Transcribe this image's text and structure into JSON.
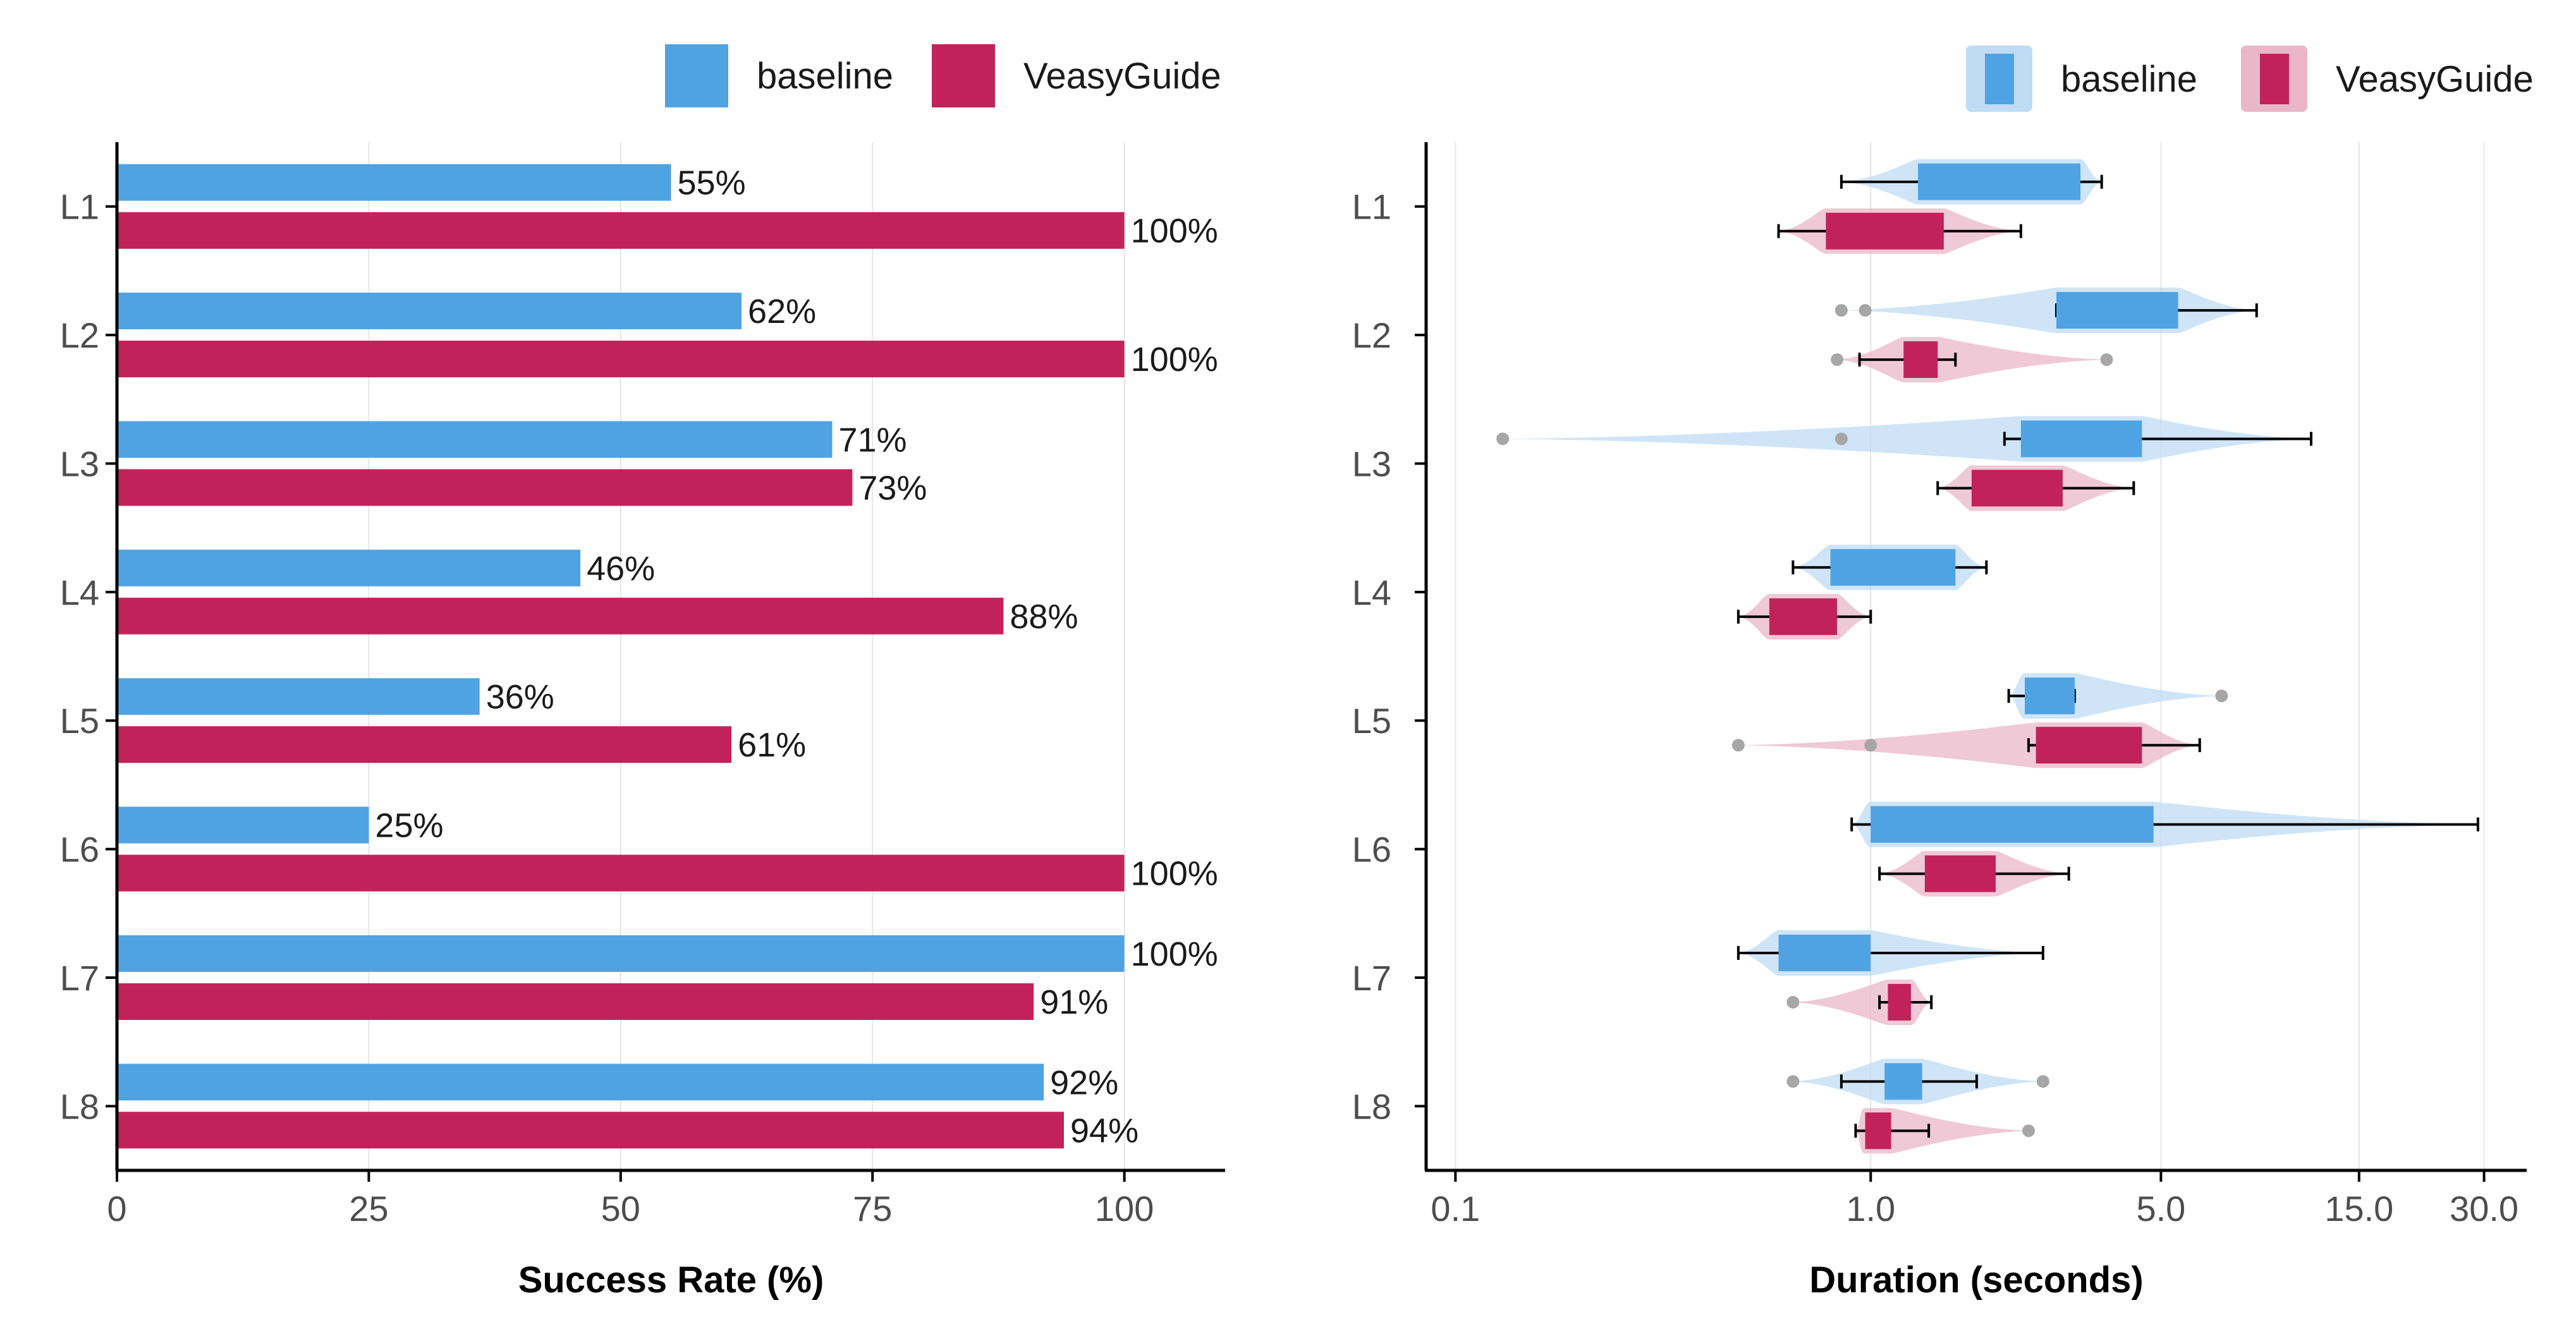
{
  "colors": {
    "baseline": "#4FA3E3",
    "veasyguide": "#C2225A",
    "baseline_fill_light": "#BFDCF4",
    "veasyguide_fill_light": "#E9B7C8",
    "grid": "#E6E6E6",
    "outlier": "#A6A6A6"
  },
  "chart_data": [
    {
      "type": "bar",
      "orientation": "horizontal",
      "xlabel": "Success Rate (%)",
      "xlim": [
        0,
        110
      ],
      "xticks": [
        0,
        25,
        50,
        75,
        100
      ],
      "categories": [
        "L1",
        "L2",
        "L3",
        "L4",
        "L5",
        "L6",
        "L7",
        "L8"
      ],
      "legend": [
        "baseline",
        "VeasyGuide"
      ],
      "legend_position": "top",
      "series": [
        {
          "name": "baseline",
          "values": [
            55,
            62,
            71,
            46,
            36,
            25,
            100,
            92
          ],
          "labels": [
            "55%",
            "62%",
            "71%",
            "46%",
            "36%",
            "25%",
            "100%",
            "92%"
          ]
        },
        {
          "name": "VeasyGuide",
          "values": [
            100,
            100,
            73,
            88,
            61,
            100,
            91,
            94
          ],
          "labels": [
            "100%",
            "100%",
            "73%",
            "88%",
            "61%",
            "100%",
            "91%",
            "94%"
          ]
        }
      ]
    },
    {
      "type": "boxplot",
      "orientation": "horizontal",
      "xscale": "log",
      "xlabel": "Duration (seconds)",
      "xlim": [
        0.085,
        38
      ],
      "xticks": [
        0.1,
        1.0,
        5.0,
        15.0,
        30.0
      ],
      "xtick_labels": [
        "0.1",
        "1.0",
        "5.0",
        "15.0",
        "30.0"
      ],
      "categories": [
        "L1",
        "L2",
        "L3",
        "L4",
        "L5",
        "L6",
        "L7",
        "L8"
      ],
      "legend": [
        "baseline",
        "VeasyGuide"
      ],
      "legend_position": "top-right",
      "series": [
        {
          "name": "baseline",
          "boxes": [
            {
              "whisker_low": 0.85,
              "q1": 1.3,
              "q3": 3.2,
              "whisker_high": 3.6,
              "outliers": []
            },
            {
              "whisker_low": 2.8,
              "q1": 2.8,
              "q3": 5.5,
              "whisker_high": 8.5,
              "outliers": [
                0.85,
                0.97
              ]
            },
            {
              "whisker_low": 2.1,
              "q1": 2.3,
              "q3": 4.5,
              "whisker_high": 11.5,
              "outliers": [
                0.13,
                0.85
              ]
            },
            {
              "whisker_low": 0.65,
              "q1": 0.8,
              "q3": 1.6,
              "whisker_high": 1.9,
              "outliers": []
            },
            {
              "whisker_low": 2.15,
              "q1": 2.35,
              "q3": 3.1,
              "whisker_high": 3.1,
              "outliers": [
                7.0
              ]
            },
            {
              "whisker_low": 0.9,
              "q1": 1.0,
              "q3": 4.8,
              "whisker_high": 29.0,
              "outliers": []
            },
            {
              "whisker_low": 0.48,
              "q1": 0.6,
              "q3": 1.0,
              "whisker_high": 2.6,
              "outliers": []
            },
            {
              "whisker_low": 0.85,
              "q1": 1.08,
              "q3": 1.33,
              "whisker_high": 1.8,
              "outliers": [
                0.65,
                2.6
              ]
            }
          ]
        },
        {
          "name": "VeasyGuide",
          "boxes": [
            {
              "whisker_low": 0.6,
              "q1": 0.78,
              "q3": 1.5,
              "whisker_high": 2.3,
              "outliers": []
            },
            {
              "whisker_low": 0.94,
              "q1": 1.2,
              "q3": 1.45,
              "whisker_high": 1.6,
              "outliers": [
                0.83,
                3.7
              ]
            },
            {
              "whisker_low": 1.45,
              "q1": 1.75,
              "q3": 2.9,
              "whisker_high": 4.3,
              "outliers": []
            },
            {
              "whisker_low": 0.48,
              "q1": 0.57,
              "q3": 0.83,
              "whisker_high": 1.0,
              "outliers": []
            },
            {
              "whisker_low": 2.4,
              "q1": 2.5,
              "q3": 4.5,
              "whisker_high": 6.2,
              "outliers": [
                0.48,
                1.0
              ]
            },
            {
              "whisker_low": 1.05,
              "q1": 1.35,
              "q3": 2.0,
              "whisker_high": 3.0,
              "outliers": []
            },
            {
              "whisker_low": 1.05,
              "q1": 1.1,
              "q3": 1.25,
              "whisker_high": 1.4,
              "outliers": [
                0.65
              ]
            },
            {
              "whisker_low": 0.92,
              "q1": 0.97,
              "q3": 1.12,
              "whisker_high": 1.38,
              "outliers": [
                2.4
              ]
            }
          ]
        }
      ]
    }
  ]
}
